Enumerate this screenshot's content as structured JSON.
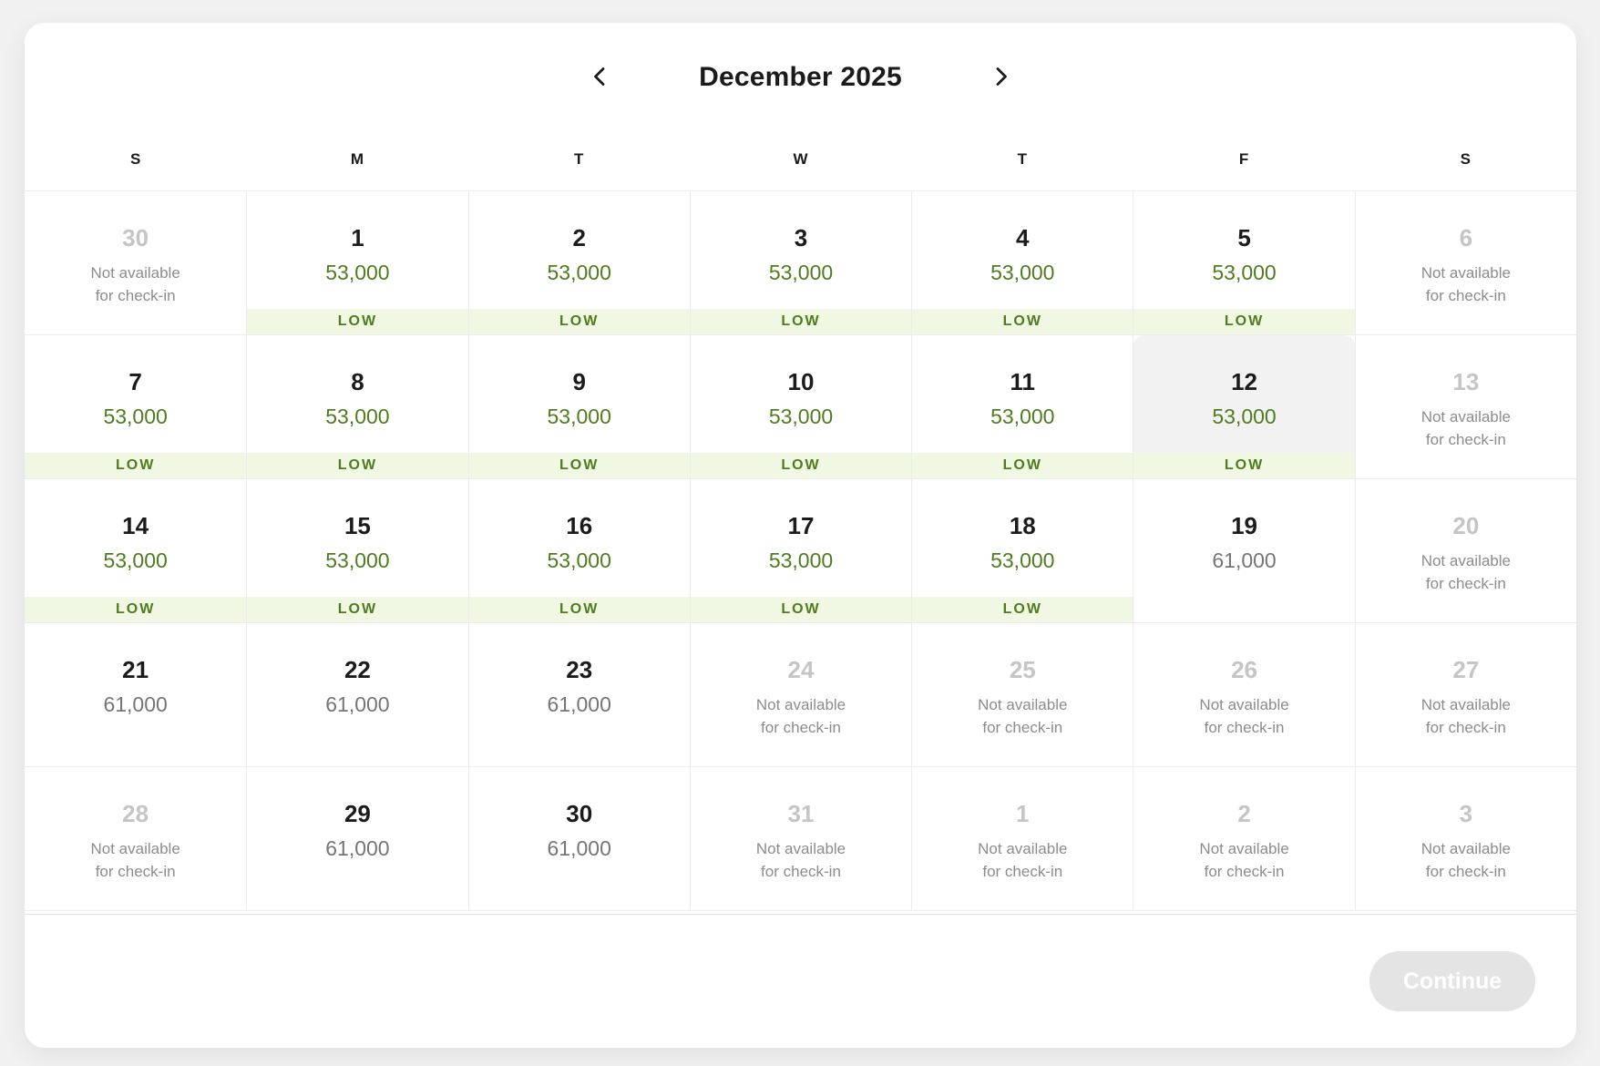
{
  "header": {
    "title": "December 2025",
    "prev_icon": "chevron-left-icon",
    "next_icon": "chevron-right-icon"
  },
  "weekdays": [
    "S",
    "M",
    "T",
    "W",
    "T",
    "F",
    "S"
  ],
  "labels": {
    "low_badge": "LOW",
    "not_available_lines": [
      "Not available",
      "for check-in"
    ]
  },
  "footer": {
    "continue_label": "Continue"
  },
  "colors": {
    "page_bg": "#f1f1f2",
    "price_green": "#4e7c1e",
    "price_gray": "#757575",
    "badge_bg": "#f0f7e2",
    "badge_text": "#4e7c1e",
    "unavailable_day": "#c5c5c5",
    "note_gray": "#8c8c8c",
    "day_black": "#1b1b1b",
    "grid_border": "#ececec",
    "selected_bg": "#f2f2f2",
    "button_bg": "#e4e4e4",
    "button_text": "#ffffff"
  },
  "weeks": [
    [
      {
        "day": "30",
        "state": "unavailable"
      },
      {
        "day": "1",
        "state": "available",
        "price": "53,000",
        "tone": "green",
        "low": true
      },
      {
        "day": "2",
        "state": "available",
        "price": "53,000",
        "tone": "green",
        "low": true
      },
      {
        "day": "3",
        "state": "available",
        "price": "53,000",
        "tone": "green",
        "low": true
      },
      {
        "day": "4",
        "state": "available",
        "price": "53,000",
        "tone": "green",
        "low": true
      },
      {
        "day": "5",
        "state": "available",
        "price": "53,000",
        "tone": "green",
        "low": true
      },
      {
        "day": "6",
        "state": "unavailable"
      }
    ],
    [
      {
        "day": "7",
        "state": "available",
        "price": "53,000",
        "tone": "green",
        "low": true
      },
      {
        "day": "8",
        "state": "available",
        "price": "53,000",
        "tone": "green",
        "low": true
      },
      {
        "day": "9",
        "state": "available",
        "price": "53,000",
        "tone": "green",
        "low": true
      },
      {
        "day": "10",
        "state": "available",
        "price": "53,000",
        "tone": "green",
        "low": true
      },
      {
        "day": "11",
        "state": "available",
        "price": "53,000",
        "tone": "green",
        "low": true
      },
      {
        "day": "12",
        "state": "selected",
        "price": "53,000",
        "tone": "green",
        "low": true
      },
      {
        "day": "13",
        "state": "unavailable"
      }
    ],
    [
      {
        "day": "14",
        "state": "available",
        "price": "53,000",
        "tone": "green",
        "low": true
      },
      {
        "day": "15",
        "state": "available",
        "price": "53,000",
        "tone": "green",
        "low": true
      },
      {
        "day": "16",
        "state": "available",
        "price": "53,000",
        "tone": "green",
        "low": true
      },
      {
        "day": "17",
        "state": "available",
        "price": "53,000",
        "tone": "green",
        "low": true
      },
      {
        "day": "18",
        "state": "available",
        "price": "53,000",
        "tone": "green",
        "low": true
      },
      {
        "day": "19",
        "state": "available",
        "price": "61,000",
        "tone": "gray",
        "low": false
      },
      {
        "day": "20",
        "state": "unavailable"
      }
    ],
    [
      {
        "day": "21",
        "state": "available",
        "price": "61,000",
        "tone": "gray",
        "low": false
      },
      {
        "day": "22",
        "state": "available",
        "price": "61,000",
        "tone": "gray",
        "low": false
      },
      {
        "day": "23",
        "state": "available",
        "price": "61,000",
        "tone": "gray",
        "low": false
      },
      {
        "day": "24",
        "state": "unavailable"
      },
      {
        "day": "25",
        "state": "unavailable"
      },
      {
        "day": "26",
        "state": "unavailable"
      },
      {
        "day": "27",
        "state": "unavailable"
      }
    ],
    [
      {
        "day": "28",
        "state": "unavailable"
      },
      {
        "day": "29",
        "state": "available",
        "price": "61,000",
        "tone": "gray",
        "low": false
      },
      {
        "day": "30",
        "state": "available",
        "price": "61,000",
        "tone": "gray",
        "low": false
      },
      {
        "day": "31",
        "state": "unavailable"
      },
      {
        "day": "1",
        "state": "unavailable"
      },
      {
        "day": "2",
        "state": "unavailable"
      },
      {
        "day": "3",
        "state": "unavailable"
      }
    ]
  ]
}
